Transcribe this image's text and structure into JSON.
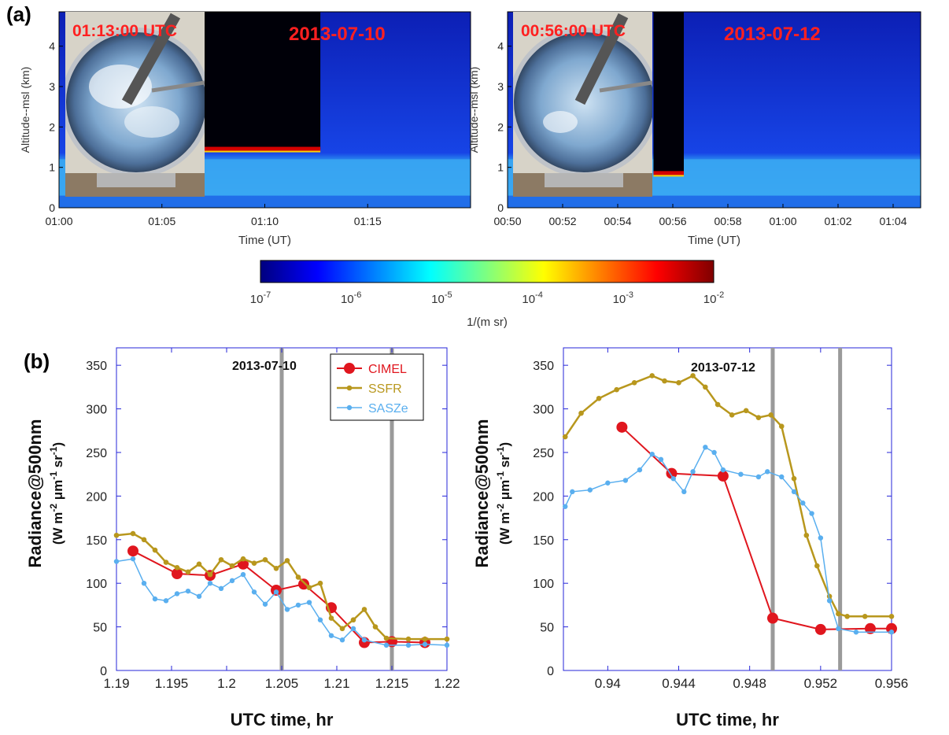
{
  "panel_labels": {
    "a": "(a)",
    "b": "(b)"
  },
  "lidar": [
    {
      "camera_time": "01:13:00 UTC",
      "date": "2013-07-10",
      "ylabel": "Altitude--msl (km)",
      "xlabel": "Time (UT)",
      "yticks": [
        "0",
        "1",
        "2",
        "3",
        "4"
      ],
      "xticks": [
        "01:00",
        "01:05",
        "01:10",
        "01:15"
      ],
      "xrange_min": [
        0,
        20
      ],
      "xtick_min": [
        0,
        5,
        10,
        15
      ],
      "cloud_base_km": 1.45,
      "cloud_start_min": 7,
      "cloud_end_min": 12.7
    },
    {
      "camera_time": "00:56:00 UTC",
      "date": "2013-07-12",
      "ylabel": "Altitude--msl (km)",
      "xlabel": "Time (UT)",
      "yticks": [
        "0",
        "1",
        "2",
        "3",
        "4"
      ],
      "xticks": [
        "00:50",
        "00:52",
        "00:54",
        "00:56",
        "00:58",
        "01:00",
        "01:02",
        "01:04"
      ],
      "xrange_min": [
        0,
        15
      ],
      "xtick_min": [
        0,
        2,
        4,
        6,
        8,
        10,
        12,
        14
      ],
      "cloud_base_km": 0.85,
      "cloud_start_min": 5.3,
      "cloud_end_min": 6.4
    }
  ],
  "colorbar": {
    "ticks": [
      "10-7",
      "10-6",
      "10-5",
      "10-4",
      "10-3",
      "10-2"
    ],
    "label": "1/(m sr)",
    "colors": [
      "#00007f",
      "#0000ff",
      "#007fff",
      "#00ffff",
      "#7fff7f",
      "#ffff00",
      "#ff7f00",
      "#ff0000",
      "#7f0000"
    ]
  },
  "colors": {
    "cimel": "#e0161e",
    "ssfr": "#b8971d",
    "saszE": "#5aafef",
    "vline": "#9a9a9a",
    "axis": "#2626d9"
  },
  "chart_data": [
    {
      "type": "line",
      "annotation": "2013-07-10",
      "xlabel": "UTC time, hr",
      "ylabel_main": "Radiance@500nm",
      "ylabel_unit": "(W m-2 μm-1 sr-1)",
      "xlim": [
        1.19,
        1.22
      ],
      "ylim": [
        0,
        370
      ],
      "xticks": [
        1.19,
        1.195,
        1.2,
        1.205,
        1.21,
        1.215,
        1.22
      ],
      "xtick_labels": [
        "1.19",
        "1.195",
        "1.2",
        "1.205",
        "1.21",
        "1.215",
        "1.22"
      ],
      "yticks": [
        0,
        50,
        100,
        150,
        200,
        250,
        300,
        350
      ],
      "ytick_labels": [
        "0",
        "50",
        "100",
        "150",
        "200",
        "250",
        "300",
        "350"
      ],
      "vlines": [
        1.205,
        1.215
      ],
      "legend": {
        "position": "top-right",
        "entries": [
          "CIMEL",
          "SSFR",
          "SASZe"
        ]
      },
      "series": [
        {
          "name": "CIMEL",
          "x": [
            1.1915,
            1.1955,
            1.1985,
            1.2015,
            1.2045,
            1.207,
            1.2095,
            1.2125,
            1.215,
            1.218
          ],
          "y": [
            137,
            111,
            109,
            122,
            92,
            99,
            72,
            32,
            33,
            32
          ]
        },
        {
          "name": "SSFR",
          "x": [
            1.19,
            1.1915,
            1.1925,
            1.1935,
            1.1945,
            1.1955,
            1.1965,
            1.1975,
            1.1985,
            1.1995,
            1.2005,
            1.2015,
            1.2025,
            1.2035,
            1.2045,
            1.2055,
            1.2065,
            1.2075,
            1.2085,
            1.2095,
            1.2105,
            1.2115,
            1.2125,
            1.2135,
            1.2145,
            1.2165,
            1.218,
            1.22
          ],
          "y": [
            155,
            157,
            150,
            138,
            124,
            118,
            113,
            122,
            110,
            127,
            120,
            128,
            123,
            127,
            117,
            126,
            107,
            95,
            100,
            60,
            48,
            58,
            70,
            50,
            37,
            36,
            36,
            36
          ]
        },
        {
          "name": "SASZe",
          "x": [
            1.19,
            1.1915,
            1.1925,
            1.1935,
            1.1945,
            1.1955,
            1.1965,
            1.1975,
            1.1985,
            1.1995,
            1.2005,
            1.2015,
            1.2025,
            1.2035,
            1.2045,
            1.2055,
            1.2065,
            1.2075,
            1.2085,
            1.2095,
            1.2105,
            1.2115,
            1.2125,
            1.2145,
            1.2165,
            1.218,
            1.22
          ],
          "y": [
            125,
            128,
            100,
            82,
            80,
            88,
            91,
            85,
            100,
            94,
            103,
            110,
            90,
            76,
            90,
            70,
            75,
            78,
            58,
            40,
            35,
            48,
            35,
            29,
            29,
            30,
            29
          ]
        }
      ]
    },
    {
      "type": "line",
      "annotation": "2013-07-12",
      "xlabel": "UTC time, hr",
      "ylabel_main": "Radiance@500nm",
      "ylabel_unit": "(W m-2 μm-1 sr-1)",
      "xlim": [
        0.9375,
        0.956
      ],
      "ylim": [
        0,
        370
      ],
      "xticks": [
        0.94,
        0.944,
        0.948,
        0.952,
        0.956
      ],
      "xtick_labels": [
        "0.94",
        "0.944",
        "0.948",
        "0.952",
        "0.956"
      ],
      "yticks": [
        0,
        50,
        100,
        150,
        200,
        250,
        300,
        350
      ],
      "ytick_labels": [
        "0",
        "50",
        "100",
        "150",
        "200",
        "250",
        "300",
        "350"
      ],
      "vlines": [
        0.9493,
        0.9531
      ],
      "series": [
        {
          "name": "CIMEL",
          "x": [
            0.9408,
            0.9436,
            0.9465,
            0.9493,
            0.952,
            0.9548,
            0.956
          ],
          "y": [
            279,
            226,
            223,
            60,
            47,
            48,
            48
          ]
        },
        {
          "name": "SSFR",
          "x": [
            0.9376,
            0.9385,
            0.9395,
            0.9405,
            0.9415,
            0.9425,
            0.9432,
            0.944,
            0.9448,
            0.9455,
            0.9462,
            0.947,
            0.9478,
            0.9485,
            0.9492,
            0.9498,
            0.9505,
            0.9512,
            0.9518,
            0.9525,
            0.953,
            0.9535,
            0.9545,
            0.956
          ],
          "y": [
            268,
            295,
            312,
            322,
            330,
            338,
            332,
            330,
            338,
            325,
            305,
            293,
            298,
            290,
            293,
            280,
            220,
            155,
            120,
            85,
            65,
            62,
            62,
            62
          ]
        },
        {
          "name": "SASZe",
          "x": [
            0.9376,
            0.938,
            0.939,
            0.94,
            0.941,
            0.9418,
            0.9425,
            0.943,
            0.9437,
            0.9443,
            0.9448,
            0.9455,
            0.946,
            0.9465,
            0.9475,
            0.9485,
            0.949,
            0.9498,
            0.9505,
            0.951,
            0.9515,
            0.952,
            0.9525,
            0.953,
            0.954,
            0.956
          ],
          "y": [
            188,
            205,
            207,
            215,
            218,
            230,
            248,
            242,
            220,
            205,
            228,
            256,
            250,
            230,
            225,
            222,
            228,
            222,
            205,
            192,
            180,
            152,
            80,
            48,
            44,
            44
          ]
        }
      ]
    }
  ]
}
